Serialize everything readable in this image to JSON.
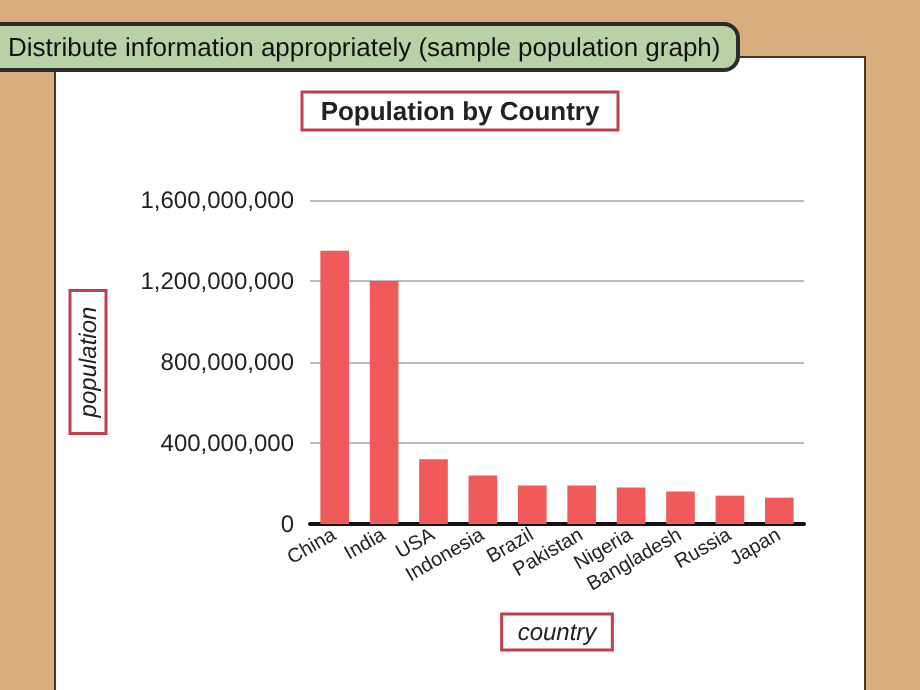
{
  "chart_data": {
    "type": "bar",
    "title": "Distribute information appropriately (sample population graph)",
    "subtitle": "Population by Country",
    "xlabel": "country",
    "ylabel": "population",
    "categories": [
      "China",
      "India",
      "USA",
      "Indonesia",
      "Brazil",
      "Pakistan",
      "Nigeria",
      "Bangladesh",
      "Russia",
      "Japan"
    ],
    "values": [
      1350000000,
      1200000000,
      320000000,
      240000000,
      190000000,
      190000000,
      180000000,
      160000000,
      140000000,
      130000000
    ],
    "color": "#f05a5a",
    "ylim": [
      0,
      1600000000
    ],
    "yticks": [
      0,
      {
        "value": 400000000,
        "label": "400,000,000"
      },
      {
        "value": 800000000,
        "label": "800,000,000"
      },
      {
        "value": 1200000000,
        "label": "1,200,000,000"
      },
      {
        "value": 1600000000,
        "label": "1,600,000,000"
      }
    ],
    "grid": "y"
  }
}
